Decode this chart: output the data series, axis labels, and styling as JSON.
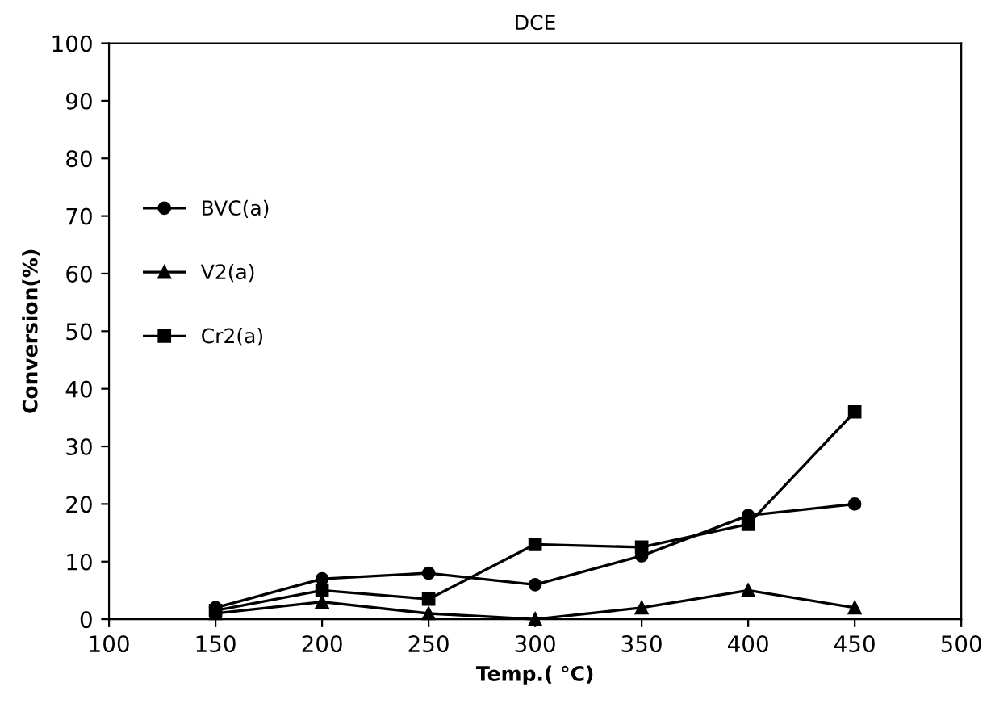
{
  "chart_data": {
    "type": "line",
    "title": "DCE",
    "xlabel": "Temp.( °C)",
    "ylabel": "Conversion(%)",
    "x": [
      150,
      200,
      250,
      300,
      350,
      400,
      450
    ],
    "series": [
      {
        "name": "BVC(a)",
        "color": "#000000",
        "marker": "circle",
        "values": [
          2,
          7,
          8,
          6,
          11,
          18,
          20
        ]
      },
      {
        "name": "V2(a)",
        "color": "#000000",
        "marker": "triangle",
        "values": [
          1,
          3,
          1,
          0,
          2,
          5,
          2
        ]
      },
      {
        "name": "Cr2(a)",
        "color": "#000000",
        "marker": "square",
        "values": [
          1.5,
          5,
          3.5,
          13,
          12.5,
          16.5,
          36
        ]
      }
    ],
    "xlim": [
      100,
      500
    ],
    "xticks": [
      100,
      150,
      200,
      250,
      300,
      350,
      400,
      450,
      500
    ],
    "ylim": [
      0,
      100
    ],
    "yticks": [
      0,
      10,
      20,
      30,
      40,
      50,
      60,
      70,
      80,
      90,
      100
    ],
    "grid": false,
    "legend": "left",
    "line_style": "solid"
  }
}
